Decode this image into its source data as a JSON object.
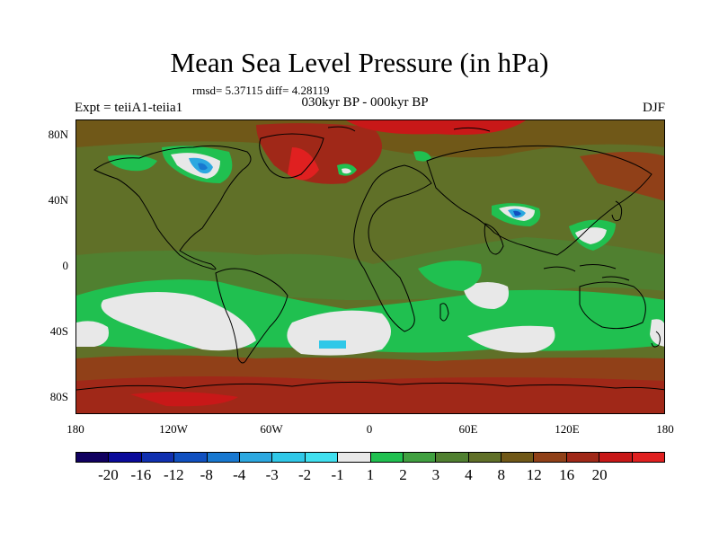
{
  "title": "Mean Sea Level Pressure (in hPa)",
  "stats": "rmsd= 5.37115 diff= 4.28119",
  "subtitle": "030kyr BP - 000kyr BP",
  "left_label": "Expt = teiiA1-teiia1",
  "right_label": "DJF",
  "colors": {
    "c_m20": "#100060",
    "c_m16": "#0a0a9a",
    "c_m12": "#1030b0",
    "c_m8": "#1050c0",
    "c_m4": "#1878d0",
    "c_m3": "#2ca8e0",
    "c_m2": "#30c8e8",
    "c_m1": "#40e0f0",
    "c_0": "#e8e8e8",
    "c_1": "#20c050",
    "c_2": "#40a040",
    "c_3": "#508030",
    "c_4": "#607028",
    "c_8": "#705818",
    "c_12": "#904018",
    "c_16": "#a02818",
    "c_20": "#c81818",
    "c_max": "#e02020"
  },
  "x_ticks": [
    "180",
    "120W",
    "60W",
    "0",
    "60E",
    "120E",
    "180"
  ],
  "y_ticks": [
    "80N",
    "40N",
    "0",
    "40S",
    "80S"
  ],
  "colorbar": {
    "colors": [
      "#100060",
      "#0a0a9a",
      "#1030b0",
      "#1050c0",
      "#1878d0",
      "#2ca8e0",
      "#30c8e8",
      "#40e0f0",
      "#e8e8e8",
      "#20c050",
      "#40a040",
      "#508030",
      "#607028",
      "#705818",
      "#904018",
      "#a02818",
      "#c81818",
      "#e02020"
    ],
    "labels": [
      "-20",
      "-16",
      "-12",
      "-8",
      "-4",
      "-3",
      "-2",
      "-1",
      "1",
      "2",
      "3",
      "4",
      "8",
      "12",
      "16",
      "20"
    ]
  }
}
